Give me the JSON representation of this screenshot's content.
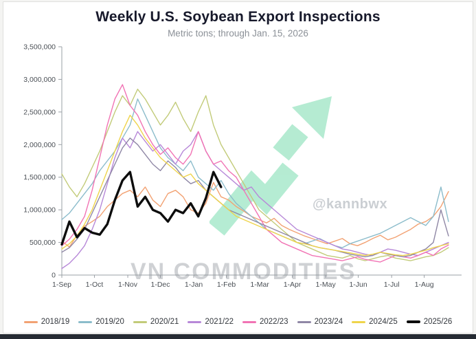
{
  "header": {
    "title": "Weekly U.S. Soybean Export Inspections",
    "subtitle": "Metric tons; through Jan. 15, 2026"
  },
  "watermarks": {
    "handle": "@kannbwx",
    "brand": "VN COMMODITIES",
    "arrow_color": "#79dcae"
  },
  "chart_data": {
    "type": "line",
    "title": "Weekly U.S. Soybean Export Inspections",
    "subtitle": "Metric tons; through Jan. 15, 2026",
    "xlabel": "",
    "ylabel": "Metric tons",
    "ylim": [
      0,
      3500000
    ],
    "x_domain": [
      0,
      52
    ],
    "y_ticks": [
      0,
      500000,
      1000000,
      1500000,
      2000000,
      2500000,
      3000000,
      3500000
    ],
    "x_tick_labels": [
      "1-Sep",
      "1-Oct",
      "1-Nov",
      "1-Dec",
      "1-Jan",
      "1-Feb",
      "1-Mar",
      "1-Apr",
      "1-May",
      "1-Jun",
      "1-Jul",
      "1-Aug"
    ],
    "x_tick_weeks": [
      0,
      4.3,
      8.7,
      13.0,
      17.4,
      21.7,
      26.1,
      30.4,
      34.8,
      39.1,
      43.5,
      47.8
    ],
    "grid": false,
    "legend_position": "bottom",
    "series": [
      {
        "name": "2018/19",
        "color": "#f2a273",
        "width": 1.4,
        "values": [
          520000,
          430000,
          610000,
          750000,
          820000,
          900000,
          1050000,
          1150000,
          1250000,
          1300000,
          1200000,
          1350000,
          1150000,
          1050000,
          1250000,
          1300000,
          1200000,
          1000000,
          950000,
          1100000,
          1420000,
          1200000,
          1150000,
          1050000,
          980000,
          900000,
          850000,
          800000,
          870000,
          760000,
          700000,
          650000,
          600000,
          560000,
          520000,
          480000,
          520000,
          560000,
          480000,
          450000,
          500000,
          560000,
          610000,
          540000,
          580000,
          640000,
          700000,
          780000,
          820000,
          900000,
          1050000,
          1280000
        ]
      },
      {
        "name": "2019/20",
        "color": "#8bbccb",
        "width": 1.4,
        "values": [
          850000,
          950000,
          1100000,
          1250000,
          1400000,
          1600000,
          1750000,
          1900000,
          2100000,
          2300000,
          2700000,
          2450000,
          2200000,
          1950000,
          1800000,
          1700000,
          1600000,
          1750000,
          1500000,
          1400000,
          1300000,
          1450000,
          1250000,
          1100000,
          1000000,
          900000,
          800000,
          700000,
          650000,
          600000,
          550000,
          500000,
          480000,
          520000,
          560000,
          500000,
          450000,
          420000,
          480000,
          520000,
          560000,
          600000,
          640000,
          700000,
          760000,
          820000,
          880000,
          820000,
          760000,
          900000,
          1350000,
          820000
        ]
      },
      {
        "name": "2020/21",
        "color": "#c2cb79",
        "width": 1.4,
        "values": [
          1550000,
          1350000,
          1200000,
          1400000,
          1650000,
          1900000,
          2200000,
          2500000,
          2750000,
          2600000,
          2850000,
          2700000,
          2500000,
          2300000,
          2450000,
          2650000,
          2400000,
          2200000,
          2500000,
          2750000,
          2300000,
          2000000,
          1800000,
          1600000,
          1400000,
          1200000,
          1000000,
          900000,
          800000,
          700000,
          600000,
          500000,
          450000,
          400000,
          350000,
          300000,
          280000,
          260000,
          300000,
          250000,
          220000,
          250000,
          280000,
          300000,
          260000,
          240000,
          220000,
          250000,
          280000,
          300000,
          350000,
          420000
        ]
      },
      {
        "name": "2021/22",
        "color": "#b788d8",
        "width": 1.4,
        "values": [
          100000,
          180000,
          300000,
          450000,
          700000,
          1000000,
          1400000,
          1800000,
          2100000,
          1950000,
          2200000,
          2050000,
          1900000,
          2000000,
          1850000,
          1700000,
          1900000,
          2000000,
          2200000,
          1900000,
          1700000,
          1600000,
          1500000,
          1400000,
          1300000,
          1350000,
          1200000,
          1100000,
          1000000,
          900000,
          800000,
          700000,
          650000,
          600000,
          550000,
          500000,
          450000,
          400000,
          380000,
          350000,
          320000,
          300000,
          350000,
          400000,
          380000,
          350000,
          320000,
          300000,
          350000,
          400000,
          450000,
          500000
        ]
      },
      {
        "name": "2022/23",
        "color": "#f173b4",
        "width": 1.4,
        "values": [
          450000,
          550000,
          700000,
          900000,
          1300000,
          1800000,
          2300000,
          2700000,
          2920000,
          2600000,
          2450000,
          2200000,
          2000000,
          1850000,
          1950000,
          1800000,
          1700000,
          1850000,
          2200000,
          1900000,
          1700000,
          1750000,
          1600000,
          1500000,
          1300000,
          1100000,
          900000,
          700000,
          600000,
          500000,
          450000,
          400000,
          350000,
          300000,
          280000,
          260000,
          240000,
          220000,
          250000,
          280000,
          240000,
          220000,
          200000,
          250000,
          300000,
          280000,
          260000,
          300000,
          350000,
          300000,
          400000,
          460000
        ]
      },
      {
        "name": "2023/24",
        "color": "#8f87a5",
        "width": 1.4,
        "values": [
          350000,
          420000,
          550000,
          700000,
          950000,
          1200000,
          1450000,
          1700000,
          1950000,
          2100000,
          2000000,
          1850000,
          1700000,
          1600000,
          1750000,
          1650000,
          1500000,
          1400000,
          1450000,
          1300000,
          1200000,
          1100000,
          1000000,
          950000,
          900000,
          850000,
          800000,
          750000,
          700000,
          650000,
          600000,
          550000,
          500000,
          450000,
          420000,
          400000,
          380000,
          350000,
          320000,
          300000,
          280000,
          300000,
          350000,
          320000,
          300000,
          280000,
          300000,
          350000,
          400000,
          500000,
          1000000,
          600000
        ]
      },
      {
        "name": "2024/25",
        "color": "#efd44b",
        "width": 1.4,
        "values": [
          400000,
          480000,
          600000,
          780000,
          1000000,
          1300000,
          1600000,
          1900000,
          2200000,
          2450000,
          2300000,
          2100000,
          1950000,
          1800000,
          1700000,
          1600000,
          1500000,
          1550000,
          1400000,
          1300000,
          1200000,
          1100000,
          1000000,
          900000,
          850000,
          800000,
          750000,
          700000,
          650000,
          600000,
          550000,
          500000,
          480000,
          450000,
          420000,
          400000,
          380000,
          360000,
          340000,
          320000,
          300000,
          320000,
          350000,
          330000,
          310000,
          300000,
          320000,
          350000,
          380000,
          420000,
          450000,
          480000
        ]
      },
      {
        "name": "2025/26",
        "color": "#0d0d0d",
        "width": 3.4,
        "values": [
          470000,
          820000,
          580000,
          720000,
          650000,
          620000,
          780000,
          1150000,
          1450000,
          1580000,
          1050000,
          1200000,
          1000000,
          950000,
          820000,
          1000000,
          950000,
          1100000,
          900000,
          1180000,
          1580000,
          1350000
        ]
      }
    ]
  }
}
